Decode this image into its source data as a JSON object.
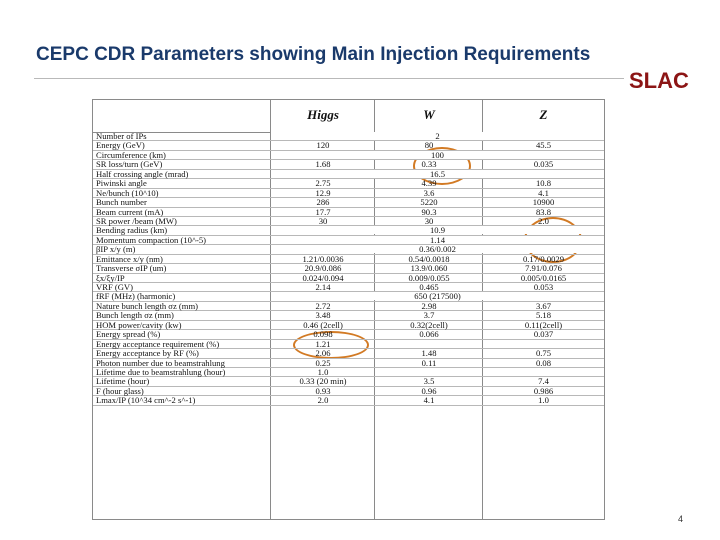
{
  "header": {
    "title": "CEPC CDR Parameters showing Main Injection Requirements",
    "logo": "SLAC"
  },
  "table": {
    "columns": [
      "Higgs",
      "W",
      "Z"
    ],
    "rows": [
      {
        "label": "Number of IPs",
        "span": "2"
      },
      {
        "label": "Energy (GeV)",
        "values": [
          "120",
          "80",
          "45.5"
        ]
      },
      {
        "label": "Circumference (km)",
        "span": "100"
      },
      {
        "label": "SR loss/turn (GeV)",
        "values": [
          "1.68",
          "0.33",
          "0.035"
        ]
      },
      {
        "label": "Half crossing angle (mrad)",
        "span": "16.5"
      },
      {
        "label": "Piwinski angle",
        "values": [
          "2.75",
          "4.39",
          "10.8"
        ]
      },
      {
        "label": "Ne/bunch (10^10)",
        "values": [
          "12.9",
          "3.6",
          "4.1"
        ]
      },
      {
        "label": "Bunch number",
        "values": [
          "286",
          "5220",
          "10900"
        ]
      },
      {
        "label": "Beam current (mA)",
        "values": [
          "17.7",
          "90.3",
          "83.8"
        ]
      },
      {
        "label": "SR power /beam (MW)",
        "values": [
          "30",
          "30",
          "2.0"
        ]
      },
      {
        "label": "Bending radius (km)",
        "span": "10.9"
      },
      {
        "label": "Momentum compaction (10^-5)",
        "span": "1.14"
      },
      {
        "label": "βIP x/y (m)",
        "span": "0.36/0.002"
      },
      {
        "label": "Emittance x/y (nm)",
        "values": [
          "1.21/0.0036",
          "0.54/0.0018",
          "0.17/0.0029"
        ]
      },
      {
        "label": "Transverse σIP (um)",
        "values": [
          "20.9/0.086",
          "13.9/0.060",
          "7.91/0.076"
        ]
      },
      {
        "label": "ξx/ξy/IP",
        "values": [
          "0.024/0.094",
          "0.009/0.055",
          "0.005/0.0165"
        ]
      },
      {
        "label": "VRF (GV)",
        "values": [
          "2.14",
          "0.465",
          "0.053"
        ]
      },
      {
        "label": "fRF (MHz) (harmonic)",
        "span": "650 (217500)"
      },
      {
        "label": "Nature bunch length σz (mm)",
        "values": [
          "2.72",
          "2.98",
          "3.67"
        ]
      },
      {
        "label": "Bunch length σz (mm)",
        "values": [
          "3.48",
          "3.7",
          "5.18"
        ]
      },
      {
        "label": "HOM power/cavity (kw)",
        "values": [
          "0.46 (2cell)",
          "0.32(2cell)",
          "0.11(2cell)"
        ]
      },
      {
        "label": "Energy spread (%)",
        "values": [
          "0.098",
          "0.066",
          "0.037"
        ]
      },
      {
        "label": "Energy acceptance requirement (%)",
        "values": [
          "1.21",
          "",
          ""
        ]
      },
      {
        "label": "Energy acceptance by RF (%)",
        "values": [
          "2.06",
          "1.48",
          "0.75"
        ]
      },
      {
        "label": "Photon number due to beamstrahlung",
        "values": [
          "0.25",
          "0.11",
          "0.08"
        ]
      },
      {
        "label": "Lifetime due to beamstrahlung (hour)",
        "values": [
          "1.0",
          "",
          ""
        ]
      },
      {
        "label": "Lifetime (hour)",
        "values": [
          "0.33 (20 min)",
          "3.5",
          "7.4"
        ]
      },
      {
        "label": "F (hour glass)",
        "values": [
          "0.93",
          "0.96",
          "0.986"
        ]
      },
      {
        "label": "Lmax/IP (10^34 cm^-2 s^-1)",
        "values": [
          "2.0",
          "4.1",
          "1.0"
        ]
      }
    ]
  },
  "page_number": "4",
  "colors": {
    "title": "#1a3a6b",
    "logo": "#8c1515",
    "highlight_circle": "#d27a24"
  }
}
